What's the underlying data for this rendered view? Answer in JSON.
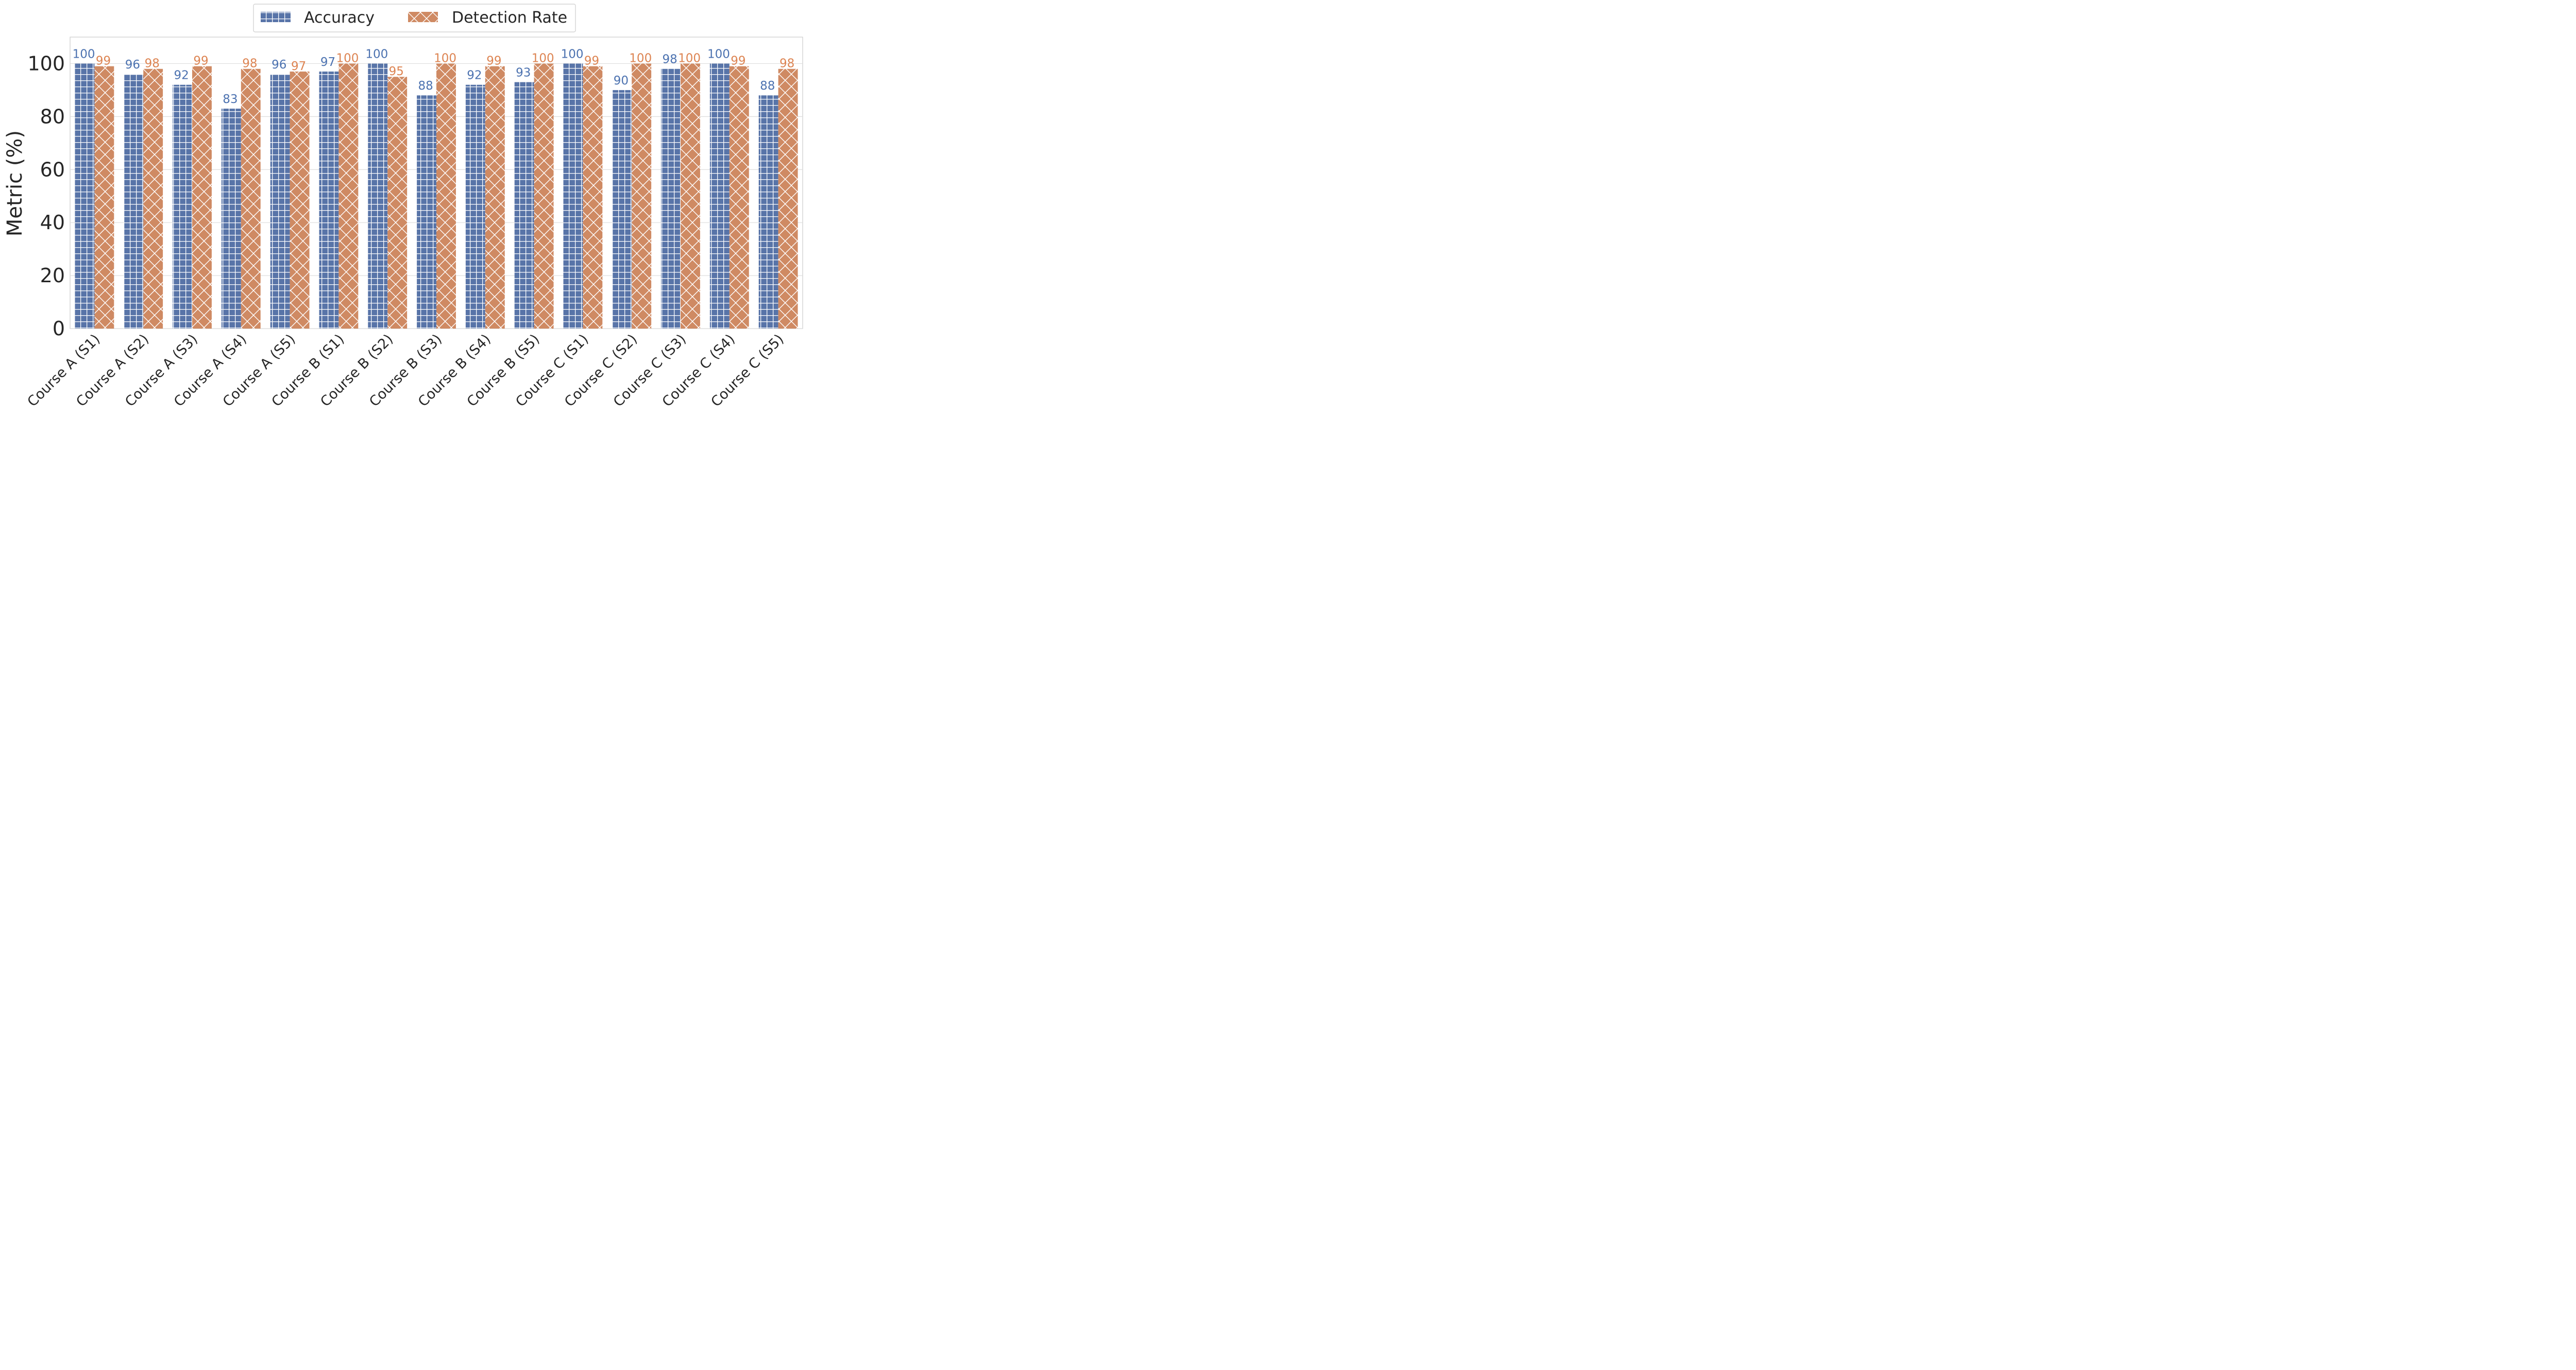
{
  "chart_data": {
    "type": "bar",
    "title": "",
    "xlabel": "",
    "ylabel": "Metric (%)",
    "ylim": [
      0,
      110
    ],
    "yticks": [
      0,
      20,
      40,
      60,
      80,
      100
    ],
    "grid": true,
    "legend_position": "top-center",
    "categories": [
      "Course A (S1)",
      "Course A (S2)",
      "Course A (S3)",
      "Course A (S4)",
      "Course A (S5)",
      "Course B (S1)",
      "Course B (S2)",
      "Course B (S3)",
      "Course B (S4)",
      "Course B (S5)",
      "Course C (S1)",
      "Course C (S2)",
      "Course C (S3)",
      "Course C (S4)",
      "Course C (S5)"
    ],
    "series": [
      {
        "name": "Accuracy",
        "color": "#5874a8",
        "label_color": "#4c72b0",
        "hatch": "grid",
        "values": [
          100,
          96,
          92,
          83,
          96,
          97,
          100,
          88,
          92,
          93,
          100,
          90,
          98,
          100,
          88
        ],
        "labels": [
          "100",
          "96",
          "92",
          "83",
          "96",
          "97",
          "100",
          "88",
          "92",
          "93",
          "100",
          "90",
          "98",
          "100",
          "88"
        ]
      },
      {
        "name": "Detection Rate",
        "color": "#cf8a63",
        "label_color": "#dd8452",
        "hatch": "cross",
        "values": [
          99,
          98,
          99,
          98,
          97,
          100,
          95,
          100,
          99,
          100,
          99,
          100,
          100,
          99,
          98
        ],
        "labels": [
          "99",
          "98",
          "99",
          "98",
          "97",
          "100",
          "95",
          "100",
          "99",
          "100",
          "99",
          "100",
          "100",
          "99",
          "98"
        ]
      }
    ]
  }
}
